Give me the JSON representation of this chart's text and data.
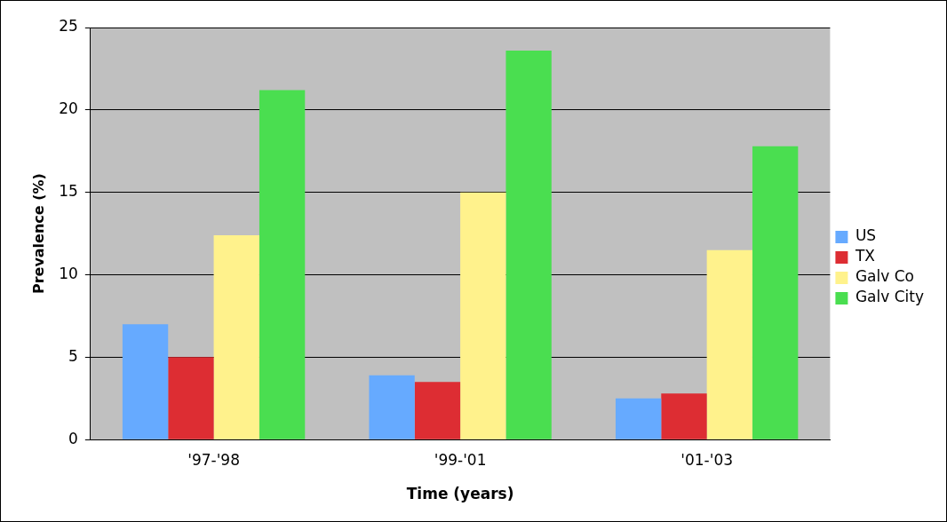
{
  "chart_data": {
    "type": "bar",
    "xlabel": "Time (years)",
    "ylabel": "Prevalence (%)",
    "categories": [
      "'97-'98",
      "'99-'01",
      "'01-'03"
    ],
    "series": [
      {
        "name": "US",
        "color": "#66aaff",
        "values": [
          7.0,
          3.9,
          2.5
        ]
      },
      {
        "name": "TX",
        "color": "#dd2d33",
        "values": [
          5.0,
          3.5,
          2.8
        ]
      },
      {
        "name": "Galv Co",
        "color": "#fff28c",
        "values": [
          12.4,
          15.0,
          11.5
        ]
      },
      {
        "name": "Galv City",
        "color": "#4ade50",
        "values": [
          21.2,
          23.6,
          17.8
        ]
      }
    ],
    "ylim": [
      0,
      25
    ],
    "yticks": [
      0,
      5,
      10,
      15,
      20,
      25
    ],
    "grid": "y",
    "legend": "right"
  }
}
